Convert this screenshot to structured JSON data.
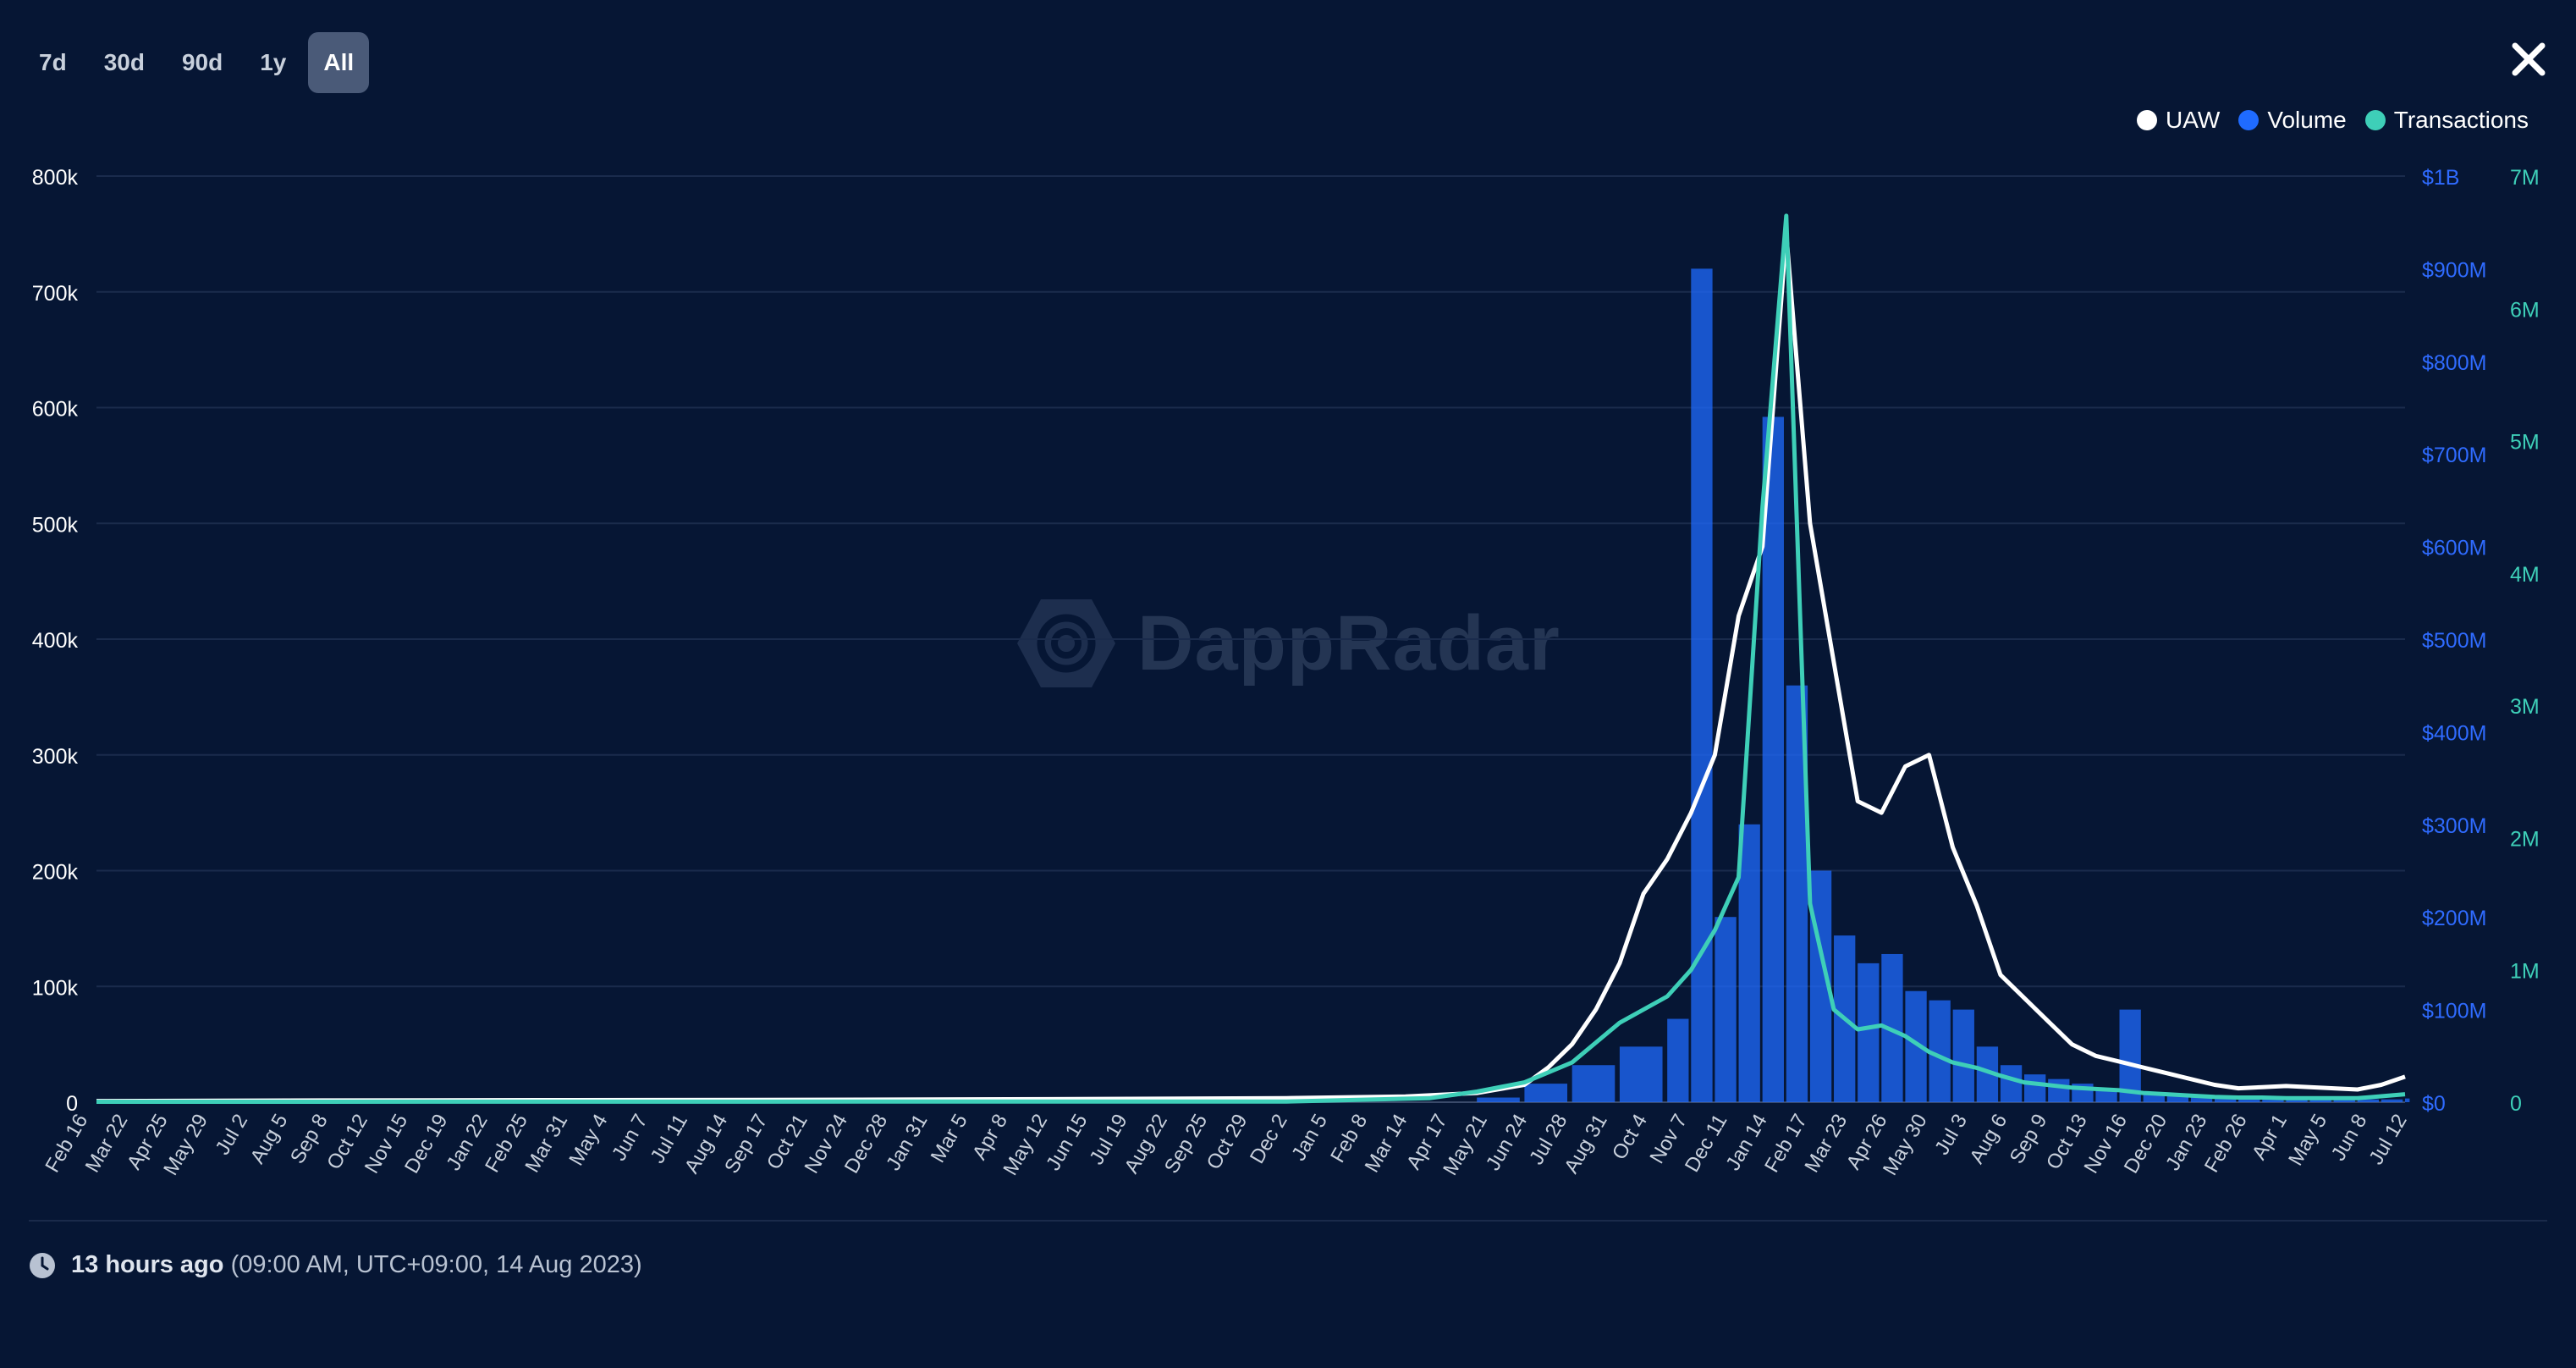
{
  "tabs": [
    {
      "label": "7d",
      "active": false
    },
    {
      "label": "30d",
      "active": false
    },
    {
      "label": "90d",
      "active": false
    },
    {
      "label": "1y",
      "active": false
    },
    {
      "label": "All",
      "active": true
    }
  ],
  "legend": [
    {
      "name": "UAW",
      "color": "#ffffff"
    },
    {
      "name": "Volume",
      "color": "#1f6bff"
    },
    {
      "name": "Transactions",
      "color": "#3ecfb8"
    }
  ],
  "watermark": "DappRadar",
  "footer": {
    "relative_time": "13 hours ago",
    "absolute_time": "(09:00 AM, UTC+09:00, 14 Aug 2023)"
  },
  "chart_data": {
    "type": "line",
    "x_ticks": [
      "Feb 16",
      "Mar 22",
      "Apr 25",
      "May 29",
      "Jul 2",
      "Aug 5",
      "Sep 8",
      "Oct 12",
      "Nov 15",
      "Dec 19",
      "Jan 22",
      "Feb 25",
      "Mar 31",
      "May 4",
      "Jun 7",
      "Jul 11",
      "Aug 14",
      "Sep 17",
      "Oct 21",
      "Nov 24",
      "Dec 28",
      "Jan 31",
      "Mar 5",
      "Apr 8",
      "May 12",
      "Jun 15",
      "Jul 19",
      "Aug 22",
      "Sep 25",
      "Oct 29",
      "Dec 2",
      "Jan 5",
      "Feb 8",
      "Mar 14",
      "Apr 17",
      "May 21",
      "Jun 24",
      "Jul 28",
      "Aug 31",
      "Oct 4",
      "Nov 7",
      "Dec 11",
      "Jan 14",
      "Feb 17",
      "Mar 23",
      "Apr 26",
      "May 30",
      "Jul 3",
      "Aug 6",
      "Sep 9",
      "Oct 13",
      "Nov 16",
      "Dec 20",
      "Jan 23",
      "Feb 26",
      "Apr 1",
      "May 5",
      "Jun 8",
      "Jul 12"
    ],
    "y_left": {
      "ticks": [
        "0",
        "100k",
        "200k",
        "300k",
        "400k",
        "500k",
        "600k",
        "700k",
        "800k"
      ],
      "min": 0,
      "max": 800000,
      "series": "UAW"
    },
    "y_right_volume": {
      "ticks": [
        "$0",
        "$100M",
        "$200M",
        "$300M",
        "$400M",
        "$500M",
        "$600M",
        "$700M",
        "$800M",
        "$900M",
        "$1B"
      ],
      "min": 0,
      "max": 1000000000,
      "series": "Volume"
    },
    "y_right_tx": {
      "ticks": [
        "0",
        "1M",
        "2M",
        "3M",
        "4M",
        "5M",
        "6M",
        "7M"
      ],
      "min": 0,
      "max": 7000000,
      "series": "Transactions"
    },
    "grid": true,
    "series": [
      {
        "name": "UAW",
        "axis": "left",
        "color": "#ffffff",
        "points": [
          [
            0,
            1000
          ],
          [
            10,
            1500
          ],
          [
            20,
            1800
          ],
          [
            30,
            2100
          ],
          [
            40,
            2600
          ],
          [
            50,
            3500
          ],
          [
            55,
            5000
          ],
          [
            58,
            8000
          ],
          [
            60,
            15000
          ],
          [
            61,
            30000
          ],
          [
            62,
            50000
          ],
          [
            63,
            80000
          ],
          [
            64,
            120000
          ],
          [
            65,
            180000
          ],
          [
            66,
            210000
          ],
          [
            67,
            250000
          ],
          [
            68,
            300000
          ],
          [
            69,
            420000
          ],
          [
            70,
            480000
          ],
          [
            71,
            750000
          ],
          [
            72,
            500000
          ],
          [
            73,
            380000
          ],
          [
            74,
            260000
          ],
          [
            75,
            250000
          ],
          [
            76,
            290000
          ],
          [
            77,
            300000
          ],
          [
            78,
            220000
          ],
          [
            79,
            170000
          ],
          [
            80,
            110000
          ],
          [
            81,
            90000
          ],
          [
            82,
            70000
          ],
          [
            83,
            50000
          ],
          [
            84,
            40000
          ],
          [
            85,
            35000
          ],
          [
            86,
            30000
          ],
          [
            87,
            25000
          ],
          [
            88,
            20000
          ],
          [
            89,
            15000
          ],
          [
            90,
            12000
          ],
          [
            91,
            13000
          ],
          [
            92,
            14000
          ],
          [
            93,
            13000
          ],
          [
            94,
            12000
          ],
          [
            95,
            11000
          ],
          [
            96,
            15000
          ],
          [
            97,
            22000
          ]
        ]
      },
      {
        "name": "Volume",
        "axis": "right_volume",
        "color": "#1f6bff",
        "points": [
          [
            0,
            0
          ],
          [
            50,
            0
          ],
          [
            58,
            5000000
          ],
          [
            60,
            20000000
          ],
          [
            62,
            40000000
          ],
          [
            64,
            60000000
          ],
          [
            66,
            90000000
          ],
          [
            67,
            900000000
          ],
          [
            68,
            200000000
          ],
          [
            69,
            300000000
          ],
          [
            70,
            740000000
          ],
          [
            71,
            450000000
          ],
          [
            72,
            250000000
          ],
          [
            73,
            180000000
          ],
          [
            74,
            150000000
          ],
          [
            75,
            160000000
          ],
          [
            76,
            120000000
          ],
          [
            77,
            110000000
          ],
          [
            78,
            100000000
          ],
          [
            79,
            60000000
          ],
          [
            80,
            40000000
          ],
          [
            81,
            30000000
          ],
          [
            82,
            25000000
          ],
          [
            83,
            20000000
          ],
          [
            84,
            15000000
          ],
          [
            85,
            100000000
          ],
          [
            86,
            10000000
          ],
          [
            87,
            8000000
          ],
          [
            88,
            6000000
          ],
          [
            89,
            5000000
          ],
          [
            90,
            4000000
          ],
          [
            91,
            4000000
          ],
          [
            92,
            3000000
          ],
          [
            93,
            3000000
          ],
          [
            94,
            3000000
          ],
          [
            95,
            3000000
          ],
          [
            96,
            3000000
          ],
          [
            97,
            4000000
          ]
        ]
      },
      {
        "name": "Transactions",
        "axis": "right_tx",
        "color": "#3ecfb8",
        "points": [
          [
            0,
            3000
          ],
          [
            50,
            5000
          ],
          [
            56,
            30000
          ],
          [
            58,
            80000
          ],
          [
            60,
            150000
          ],
          [
            62,
            300000
          ],
          [
            64,
            600000
          ],
          [
            66,
            800000
          ],
          [
            67,
            1000000
          ],
          [
            68,
            1300000
          ],
          [
            69,
            1700000
          ],
          [
            70,
            4500000
          ],
          [
            71,
            6700000
          ],
          [
            72,
            1500000
          ],
          [
            73,
            700000
          ],
          [
            74,
            550000
          ],
          [
            75,
            580000
          ],
          [
            76,
            500000
          ],
          [
            77,
            380000
          ],
          [
            78,
            300000
          ],
          [
            79,
            260000
          ],
          [
            80,
            200000
          ],
          [
            81,
            150000
          ],
          [
            82,
            130000
          ],
          [
            83,
            110000
          ],
          [
            84,
            100000
          ],
          [
            85,
            90000
          ],
          [
            86,
            70000
          ],
          [
            87,
            60000
          ],
          [
            88,
            50000
          ],
          [
            89,
            40000
          ],
          [
            90,
            35000
          ],
          [
            91,
            35000
          ],
          [
            92,
            30000
          ],
          [
            93,
            30000
          ],
          [
            94,
            30000
          ],
          [
            95,
            30000
          ],
          [
            96,
            45000
          ],
          [
            97,
            60000
          ]
        ]
      }
    ]
  }
}
